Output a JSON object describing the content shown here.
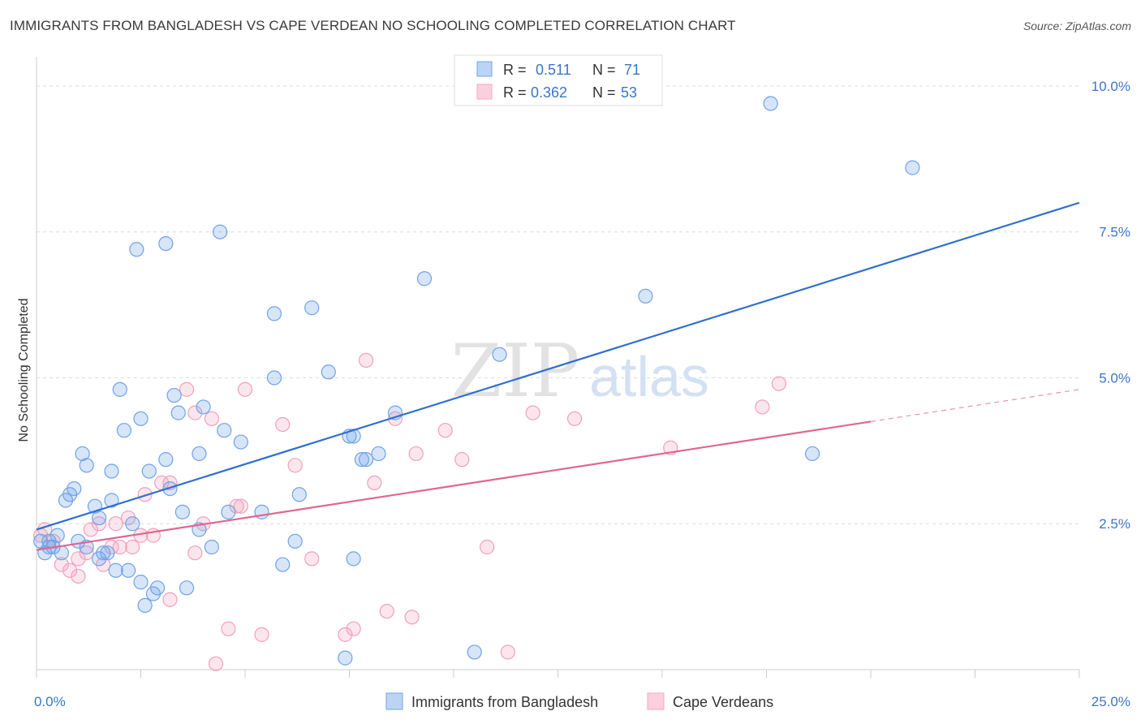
{
  "header": {
    "title": "IMMIGRANTS FROM BANGLADESH VS CAPE VERDEAN NO SCHOOLING COMPLETED CORRELATION CHART",
    "source": "Source: ZipAtlas.com"
  },
  "watermark": {
    "zip": "ZIP",
    "atlas": "atlas"
  },
  "chart_data": {
    "type": "scatter",
    "ylabel": "No Schooling Completed",
    "xlim": [
      0,
      25
    ],
    "ylim": [
      0,
      10.5
    ],
    "x_tick_labels": [
      {
        "value": 0,
        "label": "0.0%"
      },
      {
        "value": 25,
        "label": "25.0%"
      }
    ],
    "y_tick_labels": [
      {
        "value": 2.5,
        "label": "2.5%"
      },
      {
        "value": 5.0,
        "label": "5.0%"
      },
      {
        "value": 7.5,
        "label": "7.5%"
      },
      {
        "value": 10.0,
        "label": "10.0%"
      }
    ],
    "legend": {
      "r_label": "R =",
      "n_label": "N =",
      "entries": [
        {
          "r": "0.511",
          "n": "71"
        },
        {
          "r": "0.362",
          "n": "53"
        }
      ]
    },
    "series": [
      {
        "name": "Immigrants from Bangladesh",
        "color": "#6fa3e8",
        "line_color": "#2f6fd0",
        "trend": {
          "x0": 0,
          "y0": 2.4,
          "x1": 25,
          "y1": 8.0,
          "solid_to": 25
        },
        "points": [
          [
            0.1,
            2.2
          ],
          [
            0.2,
            2.0
          ],
          [
            0.3,
            2.2
          ],
          [
            0.4,
            2.1
          ],
          [
            0.5,
            2.3
          ],
          [
            0.6,
            2.0
          ],
          [
            0.7,
            2.9
          ],
          [
            0.8,
            3.0
          ],
          [
            0.9,
            3.1
          ],
          [
            1.0,
            2.2
          ],
          [
            1.1,
            3.7
          ],
          [
            1.2,
            2.1
          ],
          [
            1.2,
            3.5
          ],
          [
            1.4,
            2.8
          ],
          [
            1.5,
            2.6
          ],
          [
            1.5,
            1.9
          ],
          [
            1.6,
            2.0
          ],
          [
            1.7,
            2.0
          ],
          [
            1.8,
            3.4
          ],
          [
            1.8,
            2.9
          ],
          [
            1.9,
            1.7
          ],
          [
            2.0,
            4.8
          ],
          [
            2.1,
            4.1
          ],
          [
            2.2,
            1.7
          ],
          [
            2.3,
            2.5
          ],
          [
            2.4,
            7.2
          ],
          [
            2.5,
            1.5
          ],
          [
            2.5,
            4.3
          ],
          [
            2.6,
            1.1
          ],
          [
            2.7,
            3.4
          ],
          [
            2.8,
            1.3
          ],
          [
            2.9,
            1.4
          ],
          [
            3.1,
            7.3
          ],
          [
            3.1,
            3.6
          ],
          [
            3.2,
            3.1
          ],
          [
            3.3,
            4.7
          ],
          [
            3.4,
            4.4
          ],
          [
            3.5,
            2.7
          ],
          [
            3.6,
            1.4
          ],
          [
            3.9,
            2.4
          ],
          [
            3.9,
            3.7
          ],
          [
            4.0,
            4.5
          ],
          [
            4.2,
            2.1
          ],
          [
            4.4,
            7.5
          ],
          [
            4.5,
            4.1
          ],
          [
            4.6,
            2.7
          ],
          [
            4.9,
            3.9
          ],
          [
            5.4,
            2.7
          ],
          [
            5.7,
            6.1
          ],
          [
            5.7,
            5.0
          ],
          [
            5.9,
            1.8
          ],
          [
            6.2,
            2.2
          ],
          [
            6.3,
            3.0
          ],
          [
            6.6,
            6.2
          ],
          [
            7.0,
            5.1
          ],
          [
            7.4,
            0.2
          ],
          [
            7.5,
            4.0
          ],
          [
            7.6,
            4.0
          ],
          [
            7.6,
            1.9
          ],
          [
            7.8,
            3.6
          ],
          [
            7.9,
            3.6
          ],
          [
            8.2,
            3.7
          ],
          [
            8.6,
            4.4
          ],
          [
            9.3,
            6.7
          ],
          [
            10.5,
            0.3
          ],
          [
            11.1,
            5.4
          ],
          [
            14.6,
            6.4
          ],
          [
            17.6,
            9.7
          ],
          [
            18.6,
            3.7
          ],
          [
            21.0,
            8.6
          ],
          [
            0.3,
            2.1
          ]
        ]
      },
      {
        "name": "Cape Verdeans",
        "color": "#f4a6bf",
        "line_color": "#e0668f",
        "trend": {
          "x0": 0,
          "y0": 2.05,
          "x1": 25,
          "y1": 4.8,
          "solid_to": 20
        },
        "points": [
          [
            0.1,
            2.3
          ],
          [
            0.4,
            2.2
          ],
          [
            0.6,
            1.8
          ],
          [
            0.8,
            1.7
          ],
          [
            1.0,
            1.9
          ],
          [
            1.0,
            1.6
          ],
          [
            1.3,
            2.4
          ],
          [
            1.5,
            2.5
          ],
          [
            1.6,
            1.8
          ],
          [
            1.8,
            2.1
          ],
          [
            1.9,
            2.5
          ],
          [
            2.0,
            2.1
          ],
          [
            2.2,
            2.6
          ],
          [
            2.3,
            2.1
          ],
          [
            2.5,
            2.3
          ],
          [
            2.6,
            3.0
          ],
          [
            2.8,
            2.3
          ],
          [
            3.0,
            3.2
          ],
          [
            3.2,
            3.2
          ],
          [
            3.2,
            1.2
          ],
          [
            3.6,
            4.8
          ],
          [
            3.8,
            4.4
          ],
          [
            3.8,
            2.0
          ],
          [
            4.0,
            2.5
          ],
          [
            4.2,
            4.3
          ],
          [
            4.3,
            0.1
          ],
          [
            4.6,
            0.7
          ],
          [
            4.8,
            2.8
          ],
          [
            4.9,
            2.8
          ],
          [
            5.0,
            4.8
          ],
          [
            5.4,
            0.6
          ],
          [
            5.9,
            4.2
          ],
          [
            6.2,
            3.5
          ],
          [
            6.6,
            1.9
          ],
          [
            7.4,
            0.6
          ],
          [
            7.6,
            0.7
          ],
          [
            7.9,
            5.3
          ],
          [
            8.1,
            3.2
          ],
          [
            8.4,
            1.0
          ],
          [
            8.6,
            4.3
          ],
          [
            9.0,
            0.9
          ],
          [
            9.1,
            3.7
          ],
          [
            9.8,
            4.1
          ],
          [
            10.2,
            3.6
          ],
          [
            10.8,
            2.1
          ],
          [
            11.3,
            0.3
          ],
          [
            11.9,
            4.4
          ],
          [
            12.9,
            4.3
          ],
          [
            15.2,
            3.8
          ],
          [
            17.4,
            4.5
          ],
          [
            17.8,
            4.9
          ],
          [
            0.2,
            2.4
          ],
          [
            1.2,
            2.0
          ]
        ]
      }
    ]
  }
}
